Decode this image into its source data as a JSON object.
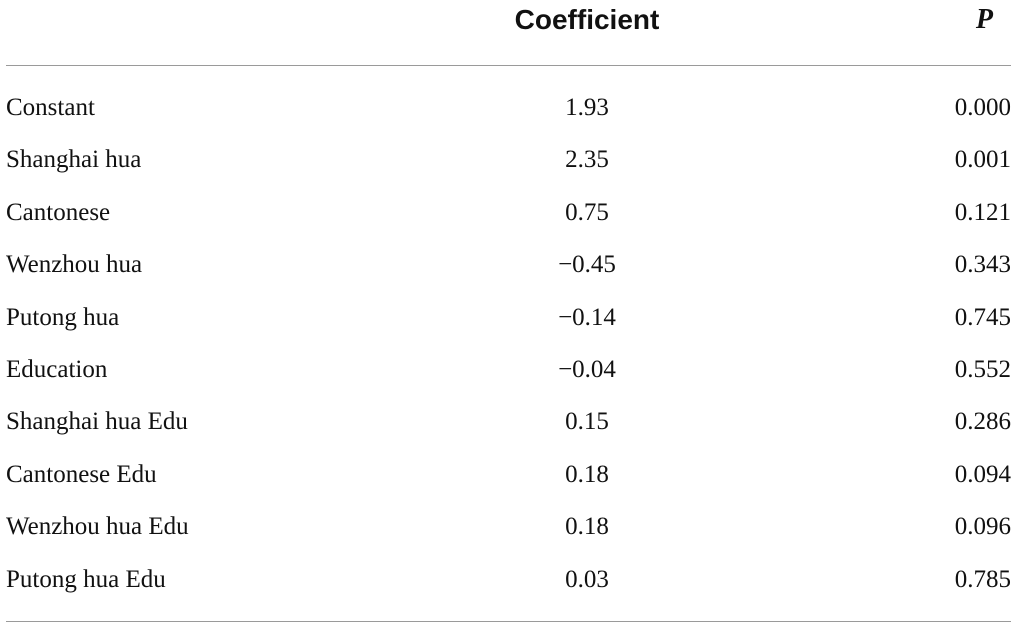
{
  "table": {
    "header": [
      "Coefficient",
      "P"
    ],
    "rows": [
      [
        "Constant",
        "1.93",
        "0.000"
      ],
      [
        "Shanghai hua",
        "2.35",
        "0.001"
      ],
      [
        "Cantonese",
        "0.75",
        "0.121"
      ],
      [
        "Wenzhou hua",
        "−0.45",
        "0.343"
      ],
      [
        "Putong hua",
        "−0.14",
        "0.745"
      ],
      [
        "Education",
        "−0.04",
        "0.552"
      ],
      [
        "Shanghai hua Edu",
        "0.15",
        "0.286"
      ],
      [
        "Cantonese Edu",
        "0.18",
        "0.094"
      ],
      [
        "Wenzhou hua Edu",
        "0.18",
        "0.096"
      ],
      [
        "Putong hua Edu",
        "0.03",
        "0.785"
      ]
    ]
  }
}
